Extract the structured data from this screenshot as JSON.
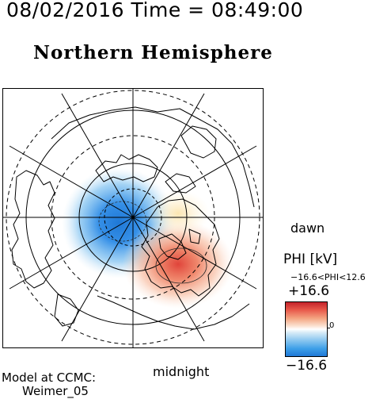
{
  "header": {
    "datetime": "08/02/2016 Time = 08:49:00"
  },
  "title": "Northern Hemisphere",
  "map": {
    "local_time_labels": {
      "dawn": "dawn",
      "midnight": "midnight"
    },
    "grid_rings": 4,
    "meridian_spokes": 12
  },
  "colorbar": {
    "title": "PHI [kV]",
    "range_text": "−16.6<PHI<12.6",
    "max_label": "+16.6",
    "mid_label": "0",
    "min_label": "−16.6",
    "colors": {
      "positive": "#c4222a",
      "zero": "#ffffff",
      "negative": "#1f78d6"
    }
  },
  "model": {
    "line1": "Model at CCMC:",
    "line2": "Weimer_05"
  }
}
